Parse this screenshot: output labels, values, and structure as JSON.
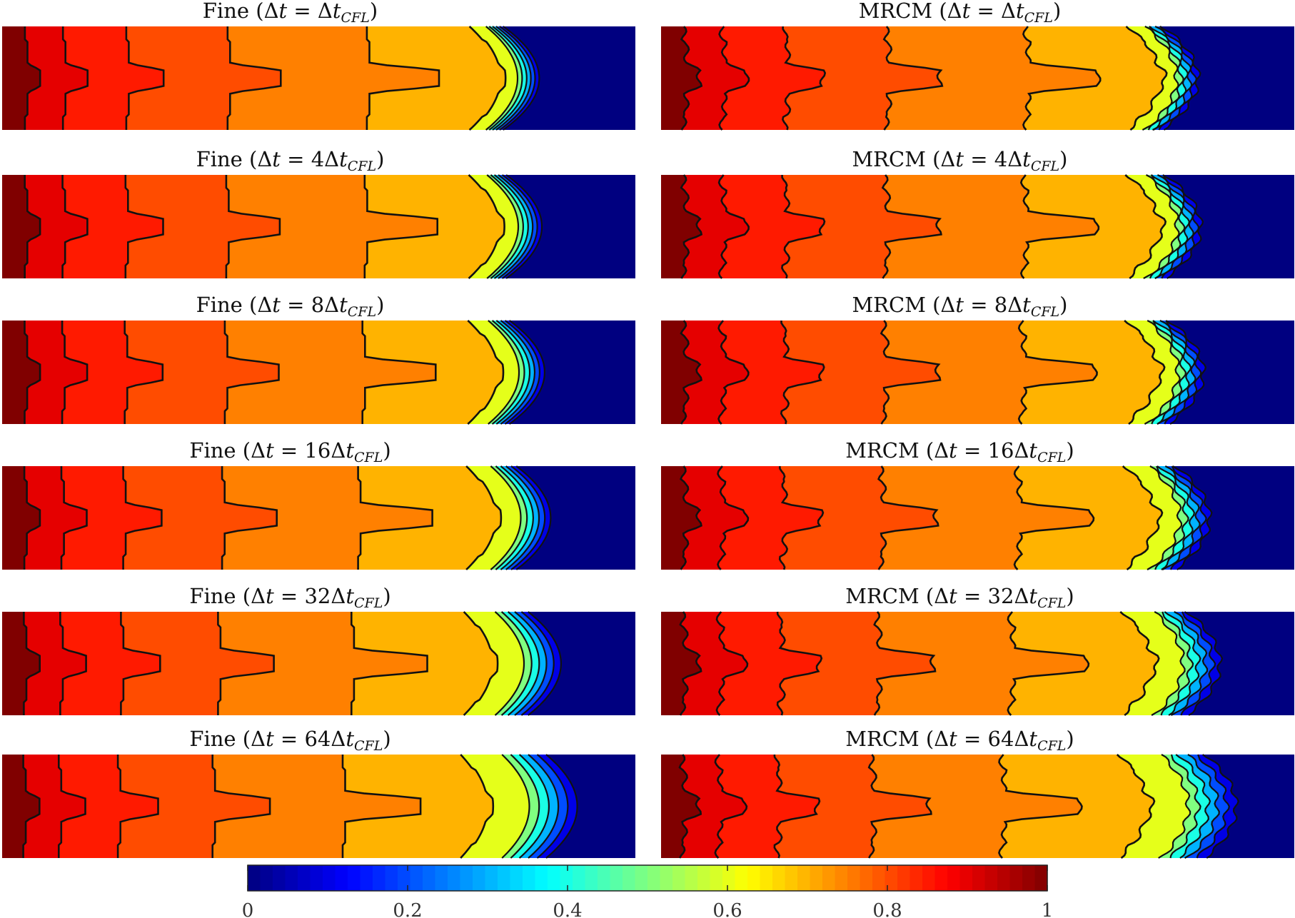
{
  "chart_data": {
    "type": "heatmap",
    "description_of_field": "filled contour maps with black contour lines",
    "colormap": "jet",
    "panels": [
      {
        "method": "Fine",
        "dt_multiplier": "",
        "title_prefix": "Fine (",
        "title_mid": "t = ",
        "title_coef": "",
        "title_sub": "CFL",
        "title_suffix": ")",
        "spread": 1.0,
        "ripple": 0
      },
      {
        "method": "MRCM",
        "dt_multiplier": "",
        "title_prefix": "MRCM (",
        "title_mid": "t = ",
        "title_coef": "",
        "title_sub": "CFL",
        "title_suffix": ")",
        "spread": 1.0,
        "ripple": 1
      },
      {
        "method": "Fine",
        "dt_multiplier": "4",
        "title_prefix": "Fine (",
        "title_mid": "t = ",
        "title_coef": "4",
        "title_sub": "CFL",
        "title_suffix": ")",
        "spread": 1.05,
        "ripple": 0
      },
      {
        "method": "MRCM",
        "dt_multiplier": "4",
        "title_prefix": "MRCM (",
        "title_mid": "t = ",
        "title_coef": "4",
        "title_sub": "CFL",
        "title_suffix": ")",
        "spread": 1.05,
        "ripple": 1
      },
      {
        "method": "Fine",
        "dt_multiplier": "8",
        "title_prefix": "Fine (",
        "title_mid": "t = ",
        "title_coef": "8",
        "title_sub": "CFL",
        "title_suffix": ")",
        "spread": 1.1,
        "ripple": 0
      },
      {
        "method": "MRCM",
        "dt_multiplier": "8",
        "title_prefix": "MRCM (",
        "title_mid": "t = ",
        "title_coef": "8",
        "title_sub": "CFL",
        "title_suffix": ")",
        "spread": 1.1,
        "ripple": 1
      },
      {
        "method": "Fine",
        "dt_multiplier": "16",
        "title_prefix": "Fine (",
        "title_mid": "t = ",
        "title_coef": "16",
        "title_sub": "CFL",
        "title_suffix": ")",
        "spread": 1.2,
        "ripple": 0
      },
      {
        "method": "MRCM",
        "dt_multiplier": "16",
        "title_prefix": "MRCM (",
        "title_mid": "t = ",
        "title_coef": "16",
        "title_sub": "CFL",
        "title_suffix": ")",
        "spread": 1.2,
        "ripple": 1
      },
      {
        "method": "Fine",
        "dt_multiplier": "32",
        "title_prefix": "Fine (",
        "title_mid": "t = ",
        "title_coef": "32",
        "title_sub": "CFL",
        "title_suffix": ")",
        "spread": 1.35,
        "ripple": 0
      },
      {
        "method": "MRCM",
        "dt_multiplier": "32",
        "title_prefix": "MRCM (",
        "title_mid": "t = ",
        "title_coef": "32",
        "title_sub": "CFL",
        "title_suffix": ")",
        "spread": 1.35,
        "ripple": 1
      },
      {
        "method": "Fine",
        "dt_multiplier": "64",
        "title_prefix": "Fine (",
        "title_mid": "t = ",
        "title_coef": "64",
        "title_sub": "CFL",
        "title_suffix": ")",
        "spread": 1.55,
        "ripple": 0
      },
      {
        "method": "MRCM",
        "dt_multiplier": "64",
        "title_prefix": "MRCM (",
        "title_mid": "t = ",
        "title_coef": "64",
        "title_sub": "CFL",
        "title_suffix": ")",
        "spread": 1.55,
        "ripple": 1
      }
    ],
    "contour_levels": [
      0.95,
      0.9,
      0.85,
      0.8,
      0.75,
      0.7,
      0.6,
      0.5,
      0.4,
      0.3,
      0.2,
      0.1
    ],
    "region_values": [
      1.0,
      0.9,
      0.85,
      0.8,
      0.75,
      0.7,
      0.6,
      0.5,
      0.4,
      0.3,
      0.2,
      0.1,
      0.0
    ],
    "colorbar": {
      "range": [
        0,
        1
      ],
      "ticks": [
        0,
        0.2,
        0.4,
        0.6,
        0.8,
        1
      ],
      "tick_labels": [
        "0",
        "0.2",
        "0.4",
        "0.6",
        "0.8",
        "1"
      ],
      "orientation": "horizontal",
      "placement": "bottom"
    }
  }
}
